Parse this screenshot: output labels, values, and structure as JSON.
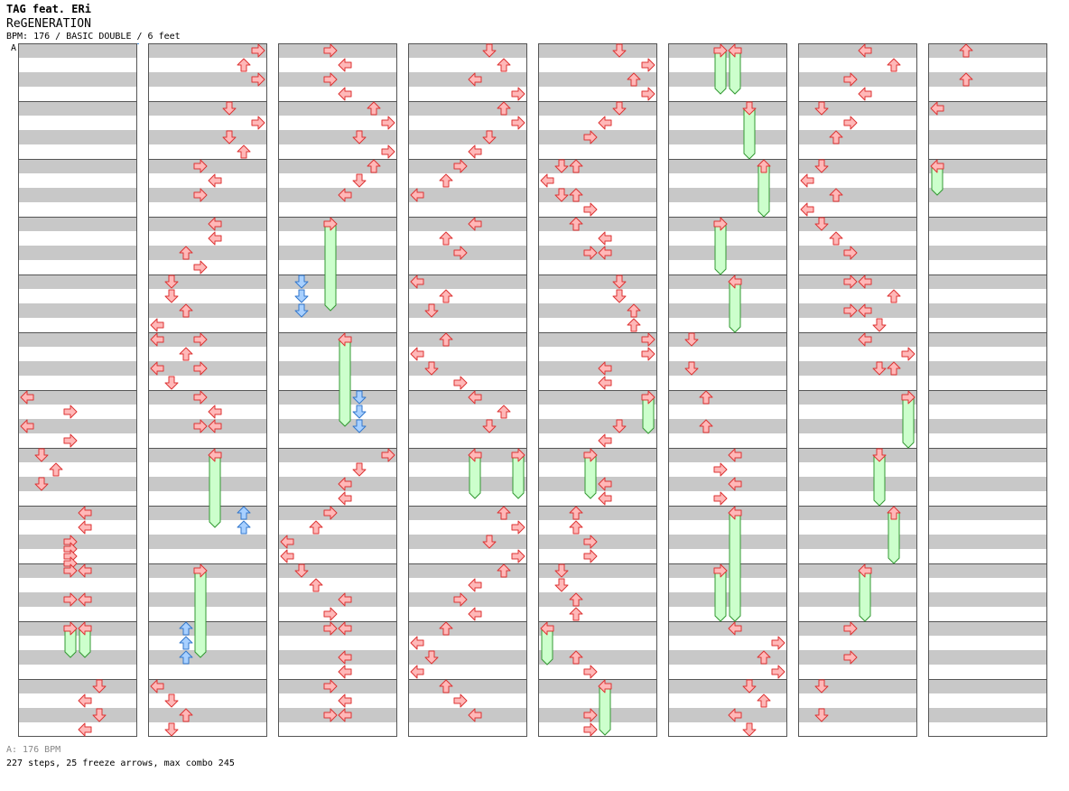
{
  "header": {
    "artist": "TAG feat. ERi",
    "title": "ReGENERATION",
    "info": "BPM: 176 / BASIC DOUBLE / 6 feet"
  },
  "marker": {
    "label": "A"
  },
  "footer": {
    "bpm_text": "A: 176 BPM",
    "stats": "227 steps, 25 freeze arrows, max combo 245"
  },
  "colors": {
    "background": "#ffffff",
    "stripe": "#c8c8c8",
    "border": "#555555",
    "arrow_fill": "#ffb8b8",
    "arrow_stroke": "#dd3333",
    "freeze_fill": "#ccffcc",
    "freeze_stroke": "#339933",
    "shock_fill": "#a8d0ff",
    "shock_stroke": "#3377cc",
    "marker_line": "#4a90d9"
  },
  "chart_data": {
    "type": "step-chart",
    "mode": "BASIC DOUBLE",
    "bpm": 176,
    "difficulty_feet": 6,
    "lanes": [
      "P1-left",
      "P1-down",
      "P1-up",
      "P1-right",
      "P2-left",
      "P2-down",
      "P2-up",
      "P2-right"
    ],
    "measures_per_column": 12,
    "beats_per_measure": 4,
    "notes": [
      {
        "m": 6,
        "b": 0.0,
        "l": 0
      },
      {
        "m": 6,
        "b": 1.0,
        "l": 3
      },
      {
        "m": 6,
        "b": 2.0,
        "l": 0
      },
      {
        "m": 6,
        "b": 3.0,
        "l": 3
      },
      {
        "m": 7,
        "b": 0.0,
        "l": 1
      },
      {
        "m": 7,
        "b": 1.0,
        "l": 2
      },
      {
        "m": 7,
        "b": 2.0,
        "l": 1
      },
      {
        "m": 8,
        "b": 0.0,
        "l": 4
      },
      {
        "m": 8,
        "b": 1.0,
        "l": 4
      },
      {
        "m": 8,
        "b": 2.0,
        "l": 3
      },
      {
        "m": 8,
        "b": 2.5,
        "l": 3
      },
      {
        "m": 8,
        "b": 3.0,
        "l": 3
      },
      {
        "m": 8,
        "b": 3.5,
        "l": 3
      },
      {
        "m": 9,
        "b": 0.0,
        "l": 3
      },
      {
        "m": 9,
        "b": 0.0,
        "l": 4
      },
      {
        "m": 9,
        "b": 2.0,
        "l": 3
      },
      {
        "m": 9,
        "b": 2.0,
        "l": 4
      },
      {
        "m": 10,
        "b": 0.0,
        "l": 3,
        "freeze": 2.0
      },
      {
        "m": 10,
        "b": 0.0,
        "l": 4,
        "freeze": 2.0
      },
      {
        "m": 11,
        "b": 0.0,
        "l": 5
      },
      {
        "m": 11,
        "b": 1.0,
        "l": 4
      },
      {
        "m": 11,
        "b": 2.0,
        "l": 5
      },
      {
        "m": 11,
        "b": 3.0,
        "l": 4
      },
      {
        "m": 12,
        "b": 0.0,
        "l": 7
      },
      {
        "m": 12,
        "b": 1.0,
        "l": 6
      },
      {
        "m": 12,
        "b": 2.0,
        "l": 7
      },
      {
        "m": 13,
        "b": 0.0,
        "l": 5
      },
      {
        "m": 13,
        "b": 1.0,
        "l": 7
      },
      {
        "m": 13,
        "b": 2.0,
        "l": 5
      },
      {
        "m": 13,
        "b": 3.0,
        "l": 6
      },
      {
        "m": 14,
        "b": 0.0,
        "l": 3
      },
      {
        "m": 14,
        "b": 1.0,
        "l": 4
      },
      {
        "m": 14,
        "b": 2.0,
        "l": 3
      },
      {
        "m": 15,
        "b": 0.0,
        "l": 4
      },
      {
        "m": 15,
        "b": 1.0,
        "l": 4
      },
      {
        "m": 15,
        "b": 2.0,
        "l": 2
      },
      {
        "m": 15,
        "b": 3.0,
        "l": 3
      },
      {
        "m": 16,
        "b": 0.0,
        "l": 1
      },
      {
        "m": 16,
        "b": 1.0,
        "l": 1
      },
      {
        "m": 16,
        "b": 2.0,
        "l": 2
      },
      {
        "m": 16,
        "b": 3.0,
        "l": 0
      },
      {
        "m": 17,
        "b": 0.0,
        "l": 0
      },
      {
        "m": 17,
        "b": 0.0,
        "l": 3
      },
      {
        "m": 17,
        "b": 1.0,
        "l": 2
      },
      {
        "m": 17,
        "b": 2.0,
        "l": 0
      },
      {
        "m": 17,
        "b": 2.0,
        "l": 3
      },
      {
        "m": 17,
        "b": 3.0,
        "l": 1
      },
      {
        "m": 18,
        "b": 0.0,
        "l": 3
      },
      {
        "m": 18,
        "b": 1.0,
        "l": 4
      },
      {
        "m": 18,
        "b": 2.0,
        "l": 3
      },
      {
        "m": 18,
        "b": 2.0,
        "l": 4
      },
      {
        "m": 19,
        "b": 0.0,
        "l": 4,
        "freeze": 5.0
      },
      {
        "m": 19,
        "b": 4.0,
        "l": 6,
        "shock": true
      },
      {
        "m": 19,
        "b": 5.0,
        "l": 6,
        "shock": true
      },
      {
        "m": 20,
        "b": 4.0,
        "l": 3,
        "freeze": 6.0
      },
      {
        "m": 22,
        "b": 0.0,
        "l": 2,
        "shock": true
      },
      {
        "m": 22,
        "b": 1.0,
        "l": 2,
        "shock": true
      },
      {
        "m": 22,
        "b": 2.0,
        "l": 2,
        "shock": true
      },
      {
        "m": 23,
        "b": 0.0,
        "l": 0
      },
      {
        "m": 23,
        "b": 1.0,
        "l": 1
      },
      {
        "m": 23,
        "b": 2.0,
        "l": 2
      },
      {
        "m": 23,
        "b": 3.0,
        "l": 1
      },
      {
        "m": 24,
        "b": 0.0,
        "l": 3
      },
      {
        "m": 24,
        "b": 1.0,
        "l": 4
      },
      {
        "m": 24,
        "b": 2.0,
        "l": 3
      },
      {
        "m": 24,
        "b": 3.0,
        "l": 4
      },
      {
        "m": 25,
        "b": 0.0,
        "l": 6
      },
      {
        "m": 25,
        "b": 1.0,
        "l": 7
      },
      {
        "m": 25,
        "b": 2.0,
        "l": 5
      },
      {
        "m": 25,
        "b": 3.0,
        "l": 7
      },
      {
        "m": 26,
        "b": 0.0,
        "l": 6
      },
      {
        "m": 26,
        "b": 1.0,
        "l": 5
      },
      {
        "m": 26,
        "b": 2.0,
        "l": 4
      },
      {
        "m": 27,
        "b": 0.0,
        "l": 3,
        "freeze": 6.0
      },
      {
        "m": 28,
        "b": 0.0,
        "l": 1,
        "shock": true
      },
      {
        "m": 28,
        "b": 1.0,
        "l": 1,
        "shock": true
      },
      {
        "m": 28,
        "b": 2.0,
        "l": 1,
        "shock": true
      },
      {
        "m": 29,
        "b": 0.0,
        "l": 4,
        "freeze": 6.0
      },
      {
        "m": 30,
        "b": 0.0,
        "l": 5,
        "shock": true
      },
      {
        "m": 30,
        "b": 1.0,
        "l": 5,
        "shock": true
      },
      {
        "m": 30,
        "b": 2.0,
        "l": 5,
        "shock": true
      },
      {
        "m": 31,
        "b": 0.0,
        "l": 7
      },
      {
        "m": 31,
        "b": 1.0,
        "l": 5
      },
      {
        "m": 31,
        "b": 2.0,
        "l": 4
      },
      {
        "m": 31,
        "b": 3.0,
        "l": 4
      },
      {
        "m": 32,
        "b": 0.0,
        "l": 3
      },
      {
        "m": 32,
        "b": 1.0,
        "l": 2
      },
      {
        "m": 32,
        "b": 2.0,
        "l": 0
      },
      {
        "m": 32,
        "b": 3.0,
        "l": 0
      },
      {
        "m": 33,
        "b": 0.0,
        "l": 1
      },
      {
        "m": 33,
        "b": 1.0,
        "l": 2
      },
      {
        "m": 33,
        "b": 2.0,
        "l": 4
      },
      {
        "m": 33,
        "b": 3.0,
        "l": 3
      },
      {
        "m": 34,
        "b": 0.0,
        "l": 3
      },
      {
        "m": 34,
        "b": 0.0,
        "l": 4
      },
      {
        "m": 34,
        "b": 2.0,
        "l": 4
      },
      {
        "m": 34,
        "b": 3.0,
        "l": 4
      },
      {
        "m": 35,
        "b": 0.0,
        "l": 3
      },
      {
        "m": 35,
        "b": 1.0,
        "l": 4
      },
      {
        "m": 35,
        "b": 2.0,
        "l": 3
      },
      {
        "m": 35,
        "b": 2.0,
        "l": 4
      },
      {
        "m": 36,
        "b": 0.0,
        "l": 5
      },
      {
        "m": 36,
        "b": 1.0,
        "l": 6
      },
      {
        "m": 36,
        "b": 2.0,
        "l": 4
      },
      {
        "m": 36,
        "b": 3.0,
        "l": 7
      },
      {
        "m": 37,
        "b": 0.0,
        "l": 6
      },
      {
        "m": 37,
        "b": 1.0,
        "l": 7
      },
      {
        "m": 37,
        "b": 2.0,
        "l": 5
      },
      {
        "m": 37,
        "b": 3.0,
        "l": 4
      },
      {
        "m": 38,
        "b": 0.0,
        "l": 3
      },
      {
        "m": 38,
        "b": 1.0,
        "l": 2
      },
      {
        "m": 38,
        "b": 2.0,
        "l": 0
      },
      {
        "m": 39,
        "b": 0.0,
        "l": 4
      },
      {
        "m": 39,
        "b": 1.0,
        "l": 2
      },
      {
        "m": 39,
        "b": 2.0,
        "l": 3
      },
      {
        "m": 40,
        "b": 0.0,
        "l": 0
      },
      {
        "m": 40,
        "b": 1.0,
        "l": 2
      },
      {
        "m": 40,
        "b": 2.0,
        "l": 1
      },
      {
        "m": 41,
        "b": 0.0,
        "l": 2
      },
      {
        "m": 41,
        "b": 1.0,
        "l": 0
      },
      {
        "m": 41,
        "b": 2.0,
        "l": 1
      },
      {
        "m": 41,
        "b": 3.0,
        "l": 3
      },
      {
        "m": 42,
        "b": 0.0,
        "l": 4
      },
      {
        "m": 42,
        "b": 1.0,
        "l": 6
      },
      {
        "m": 42,
        "b": 2.0,
        "l": 5
      },
      {
        "m": 43,
        "b": 0.0,
        "l": 4,
        "freeze": 3.0
      },
      {
        "m": 43,
        "b": 0.0,
        "l": 7,
        "freeze": 3.0
      },
      {
        "m": 44,
        "b": 0.0,
        "l": 6
      },
      {
        "m": 44,
        "b": 1.0,
        "l": 7
      },
      {
        "m": 44,
        "b": 2.0,
        "l": 5
      },
      {
        "m": 44,
        "b": 3.0,
        "l": 7
      },
      {
        "m": 45,
        "b": 0.0,
        "l": 6
      },
      {
        "m": 45,
        "b": 1.0,
        "l": 4
      },
      {
        "m": 45,
        "b": 2.0,
        "l": 3
      },
      {
        "m": 45,
        "b": 3.0,
        "l": 4
      },
      {
        "m": 46,
        "b": 0.0,
        "l": 2
      },
      {
        "m": 46,
        "b": 1.0,
        "l": 0
      },
      {
        "m": 46,
        "b": 2.0,
        "l": 1
      },
      {
        "m": 46,
        "b": 3.0,
        "l": 0
      },
      {
        "m": 47,
        "b": 0.0,
        "l": 2
      },
      {
        "m": 47,
        "b": 1.0,
        "l": 3
      },
      {
        "m": 47,
        "b": 2.0,
        "l": 4
      },
      {
        "m": 48,
        "b": 0.0,
        "l": 5
      },
      {
        "m": 48,
        "b": 1.0,
        "l": 7
      },
      {
        "m": 48,
        "b": 2.0,
        "l": 6
      },
      {
        "m": 48,
        "b": 3.0,
        "l": 7
      },
      {
        "m": 49,
        "b": 0.0,
        "l": 5
      },
      {
        "m": 49,
        "b": 1.0,
        "l": 4
      },
      {
        "m": 49,
        "b": 2.0,
        "l": 3
      },
      {
        "m": 50,
        "b": 0.0,
        "l": 1
      },
      {
        "m": 50,
        "b": 0.0,
        "l": 2
      },
      {
        "m": 50,
        "b": 1.0,
        "l": 0
      },
      {
        "m": 50,
        "b": 2.0,
        "l": 1
      },
      {
        "m": 50,
        "b": 2.0,
        "l": 2
      },
      {
        "m": 50,
        "b": 3.0,
        "l": 3
      },
      {
        "m": 51,
        "b": 0.0,
        "l": 2
      },
      {
        "m": 51,
        "b": 1.0,
        "l": 4
      },
      {
        "m": 51,
        "b": 2.0,
        "l": 3
      },
      {
        "m": 51,
        "b": 2.0,
        "l": 4
      },
      {
        "m": 52,
        "b": 0.0,
        "l": 5
      },
      {
        "m": 52,
        "b": 1.0,
        "l": 5
      },
      {
        "m": 52,
        "b": 2.0,
        "l": 6
      },
      {
        "m": 52,
        "b": 3.0,
        "l": 6
      },
      {
        "m": 53,
        "b": 0.0,
        "l": 7
      },
      {
        "m": 53,
        "b": 1.0,
        "l": 7
      },
      {
        "m": 53,
        "b": 2.0,
        "l": 4
      },
      {
        "m": 53,
        "b": 3.0,
        "l": 4
      },
      {
        "m": 54,
        "b": 0.0,
        "l": 7,
        "freeze": 2.5
      },
      {
        "m": 54,
        "b": 2.0,
        "l": 5
      },
      {
        "m": 54,
        "b": 3.0,
        "l": 4
      },
      {
        "m": 55,
        "b": 0.0,
        "l": 3,
        "freeze": 3.0
      },
      {
        "m": 55,
        "b": 2.0,
        "l": 4
      },
      {
        "m": 55,
        "b": 3.0,
        "l": 4
      },
      {
        "m": 56,
        "b": 0.0,
        "l": 2
      },
      {
        "m": 56,
        "b": 1.0,
        "l": 2
      },
      {
        "m": 56,
        "b": 2.0,
        "l": 3
      },
      {
        "m": 56,
        "b": 3.0,
        "l": 3
      },
      {
        "m": 57,
        "b": 0.0,
        "l": 1
      },
      {
        "m": 57,
        "b": 1.0,
        "l": 1
      },
      {
        "m": 57,
        "b": 2.0,
        "l": 2
      },
      {
        "m": 57,
        "b": 3.0,
        "l": 2
      },
      {
        "m": 58,
        "b": 0.0,
        "l": 0,
        "freeze": 2.5
      },
      {
        "m": 58,
        "b": 2.0,
        "l": 2
      },
      {
        "m": 58,
        "b": 3.0,
        "l": 3
      },
      {
        "m": 59,
        "b": 0.0,
        "l": 4,
        "freeze": 3.5
      },
      {
        "m": 59,
        "b": 2.0,
        "l": 3
      },
      {
        "m": 59,
        "b": 3.0,
        "l": 3
      },
      {
        "m": 60,
        "b": 0.0,
        "l": 3,
        "freeze": 3.0
      },
      {
        "m": 60,
        "b": 0.0,
        "l": 4,
        "freeze": 3.0
      },
      {
        "m": 61,
        "b": 0.0,
        "l": 5,
        "freeze": 3.5
      },
      {
        "m": 62,
        "b": 0.0,
        "l": 6,
        "freeze": 3.5
      },
      {
        "m": 63,
        "b": 0.0,
        "l": 3,
        "freeze": 3.5
      },
      {
        "m": 64,
        "b": 0.0,
        "l": 4,
        "freeze": 3.5
      },
      {
        "m": 65,
        "b": 0.0,
        "l": 1
      },
      {
        "m": 65,
        "b": 2.0,
        "l": 1
      },
      {
        "m": 66,
        "b": 0.0,
        "l": 2
      },
      {
        "m": 66,
        "b": 2.0,
        "l": 2
      },
      {
        "m": 67,
        "b": 0.0,
        "l": 4
      },
      {
        "m": 67,
        "b": 1.0,
        "l": 3
      },
      {
        "m": 67,
        "b": 2.0,
        "l": 4
      },
      {
        "m": 67,
        "b": 3.0,
        "l": 3
      },
      {
        "m": 68,
        "b": 0.0,
        "l": 4,
        "freeze": 7.5
      },
      {
        "m": 69,
        "b": 0.0,
        "l": 3,
        "freeze": 3.5
      },
      {
        "m": 70,
        "b": 0.0,
        "l": 4
      },
      {
        "m": 70,
        "b": 1.0,
        "l": 7
      },
      {
        "m": 70,
        "b": 2.0,
        "l": 6
      },
      {
        "m": 70,
        "b": 3.0,
        "l": 7
      },
      {
        "m": 71,
        "b": 0.0,
        "l": 5
      },
      {
        "m": 71,
        "b": 1.0,
        "l": 6
      },
      {
        "m": 71,
        "b": 2.0,
        "l": 4
      },
      {
        "m": 71,
        "b": 3.0,
        "l": 5
      },
      {
        "m": 72,
        "b": 0.0,
        "l": 4
      },
      {
        "m": 72,
        "b": 1.0,
        "l": 6
      },
      {
        "m": 72,
        "b": 2.0,
        "l": 3
      },
      {
        "m": 72,
        "b": 3.0,
        "l": 4
      },
      {
        "m": 73,
        "b": 0.0,
        "l": 1
      },
      {
        "m": 73,
        "b": 1.0,
        "l": 3
      },
      {
        "m": 73,
        "b": 2.0,
        "l": 2
      },
      {
        "m": 74,
        "b": 0.0,
        "l": 1
      },
      {
        "m": 74,
        "b": 1.0,
        "l": 0
      },
      {
        "m": 74,
        "b": 2.0,
        "l": 2
      },
      {
        "m": 74,
        "b": 3.0,
        "l": 0
      },
      {
        "m": 75,
        "b": 0.0,
        "l": 1
      },
      {
        "m": 75,
        "b": 1.0,
        "l": 2
      },
      {
        "m": 75,
        "b": 2.0,
        "l": 3
      },
      {
        "m": 76,
        "b": 0.0,
        "l": 3
      },
      {
        "m": 76,
        "b": 0.0,
        "l": 4
      },
      {
        "m": 76,
        "b": 1.0,
        "l": 6
      },
      {
        "m": 76,
        "b": 2.0,
        "l": 3
      },
      {
        "m": 76,
        "b": 2.0,
        "l": 4
      },
      {
        "m": 76,
        "b": 3.0,
        "l": 5
      },
      {
        "m": 77,
        "b": 0.0,
        "l": 4
      },
      {
        "m": 77,
        "b": 1.0,
        "l": 7
      },
      {
        "m": 77,
        "b": 2.0,
        "l": 5
      },
      {
        "m": 77,
        "b": 2.0,
        "l": 6
      },
      {
        "m": 78,
        "b": 0.0,
        "l": 7,
        "freeze": 3.5
      },
      {
        "m": 79,
        "b": 0.0,
        "l": 5,
        "freeze": 3.5
      },
      {
        "m": 80,
        "b": 0.0,
        "l": 6,
        "freeze": 3.5
      },
      {
        "m": 81,
        "b": 0.0,
        "l": 4,
        "freeze": 3.5
      },
      {
        "m": 82,
        "b": 0.0,
        "l": 3
      },
      {
        "m": 82,
        "b": 2.0,
        "l": 3
      },
      {
        "m": 83,
        "b": 0.0,
        "l": 1
      },
      {
        "m": 83,
        "b": 2.0,
        "l": 1
      },
      {
        "m": 84,
        "b": 0.0,
        "l": 2
      },
      {
        "m": 84,
        "b": 2.0,
        "l": 2
      },
      {
        "m": 85,
        "b": 0.0,
        "l": 0
      },
      {
        "m": 86,
        "b": 0.0,
        "l": 0,
        "freeze": 2.0
      }
    ]
  }
}
